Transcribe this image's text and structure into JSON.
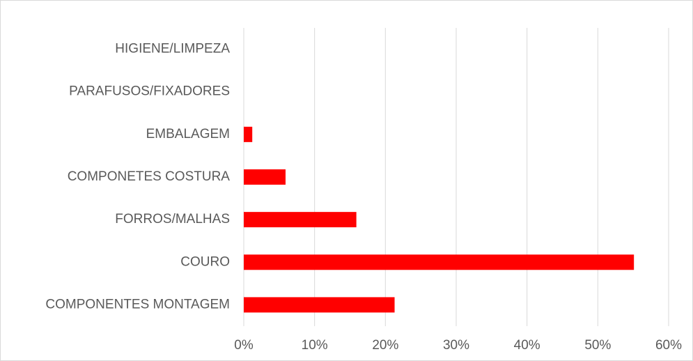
{
  "chart_data": {
    "type": "barh",
    "categories": [
      "HIGIENE/LIMPEZA",
      "PARAFUSOS/FIXADORES",
      "EMBALAGEM",
      "COMPONETES COSTURA",
      "FORROS/MALHAS",
      "COURO",
      "COMPONENTES MONTAGEM"
    ],
    "values": [
      0,
      0,
      1.2,
      5.9,
      15.9,
      55.1,
      21.3
    ],
    "color": "#ff0000",
    "xlim": [
      0,
      60
    ],
    "xticks": [
      {
        "value": 0,
        "label": "0%"
      },
      {
        "value": 10,
        "label": "10%"
      },
      {
        "value": 20,
        "label": "20%"
      },
      {
        "value": 30,
        "label": "30%"
      },
      {
        "value": 40,
        "label": "40%"
      },
      {
        "value": 50,
        "label": "50%"
      },
      {
        "value": 60,
        "label": "60%"
      }
    ],
    "grid": true
  }
}
